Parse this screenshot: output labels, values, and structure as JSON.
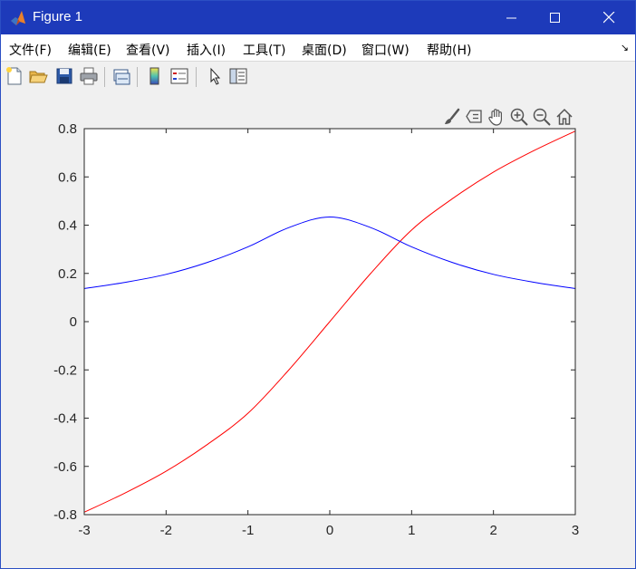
{
  "window": {
    "title": "Figure 1",
    "controls": [
      "minimize",
      "maximize",
      "close"
    ]
  },
  "menu": {
    "items": [
      {
        "label": "文件(F)",
        "mnemonic": "F"
      },
      {
        "label": "编辑(E)",
        "mnemonic": "E"
      },
      {
        "label": "查看(V)",
        "mnemonic": "V"
      },
      {
        "label": "插入(I)",
        "mnemonic": "I"
      },
      {
        "label": "工具(T)",
        "mnemonic": "T"
      },
      {
        "label": "桌面(D)",
        "mnemonic": "D"
      },
      {
        "label": "窗口(W)",
        "mnemonic": "W"
      },
      {
        "label": "帮助(H)",
        "mnemonic": "H"
      }
    ],
    "overflow_arrow": "↘"
  },
  "toolbar": {
    "buttons": [
      "new-figure-icon",
      "open-file-icon",
      "save-icon",
      "print-icon",
      "link-plot-icon",
      "insert-colorbar-icon",
      "insert-legend-icon",
      "edit-plot-arrow-icon",
      "property-inspector-icon"
    ]
  },
  "axes_toolbar": {
    "buttons": [
      "brush-icon",
      "data-tips-icon",
      "pan-icon",
      "zoom-in-icon",
      "zoom-out-icon",
      "restore-view-icon"
    ]
  },
  "chart_data": {
    "type": "line",
    "title": "",
    "xlabel": "",
    "ylabel": "",
    "xlim": [
      -3,
      3
    ],
    "ylim": [
      -0.8,
      0.8
    ],
    "xticks": [
      "-3",
      "-2",
      "-1",
      "0",
      "1",
      "2",
      "3"
    ],
    "yticks": [
      "0.8",
      "0.6",
      "0.4",
      "0.2",
      "0",
      "-0.2",
      "-0.4",
      "-0.6",
      "-0.8"
    ],
    "x": [
      -3,
      -2.5,
      -2,
      -1.5,
      -1,
      -0.5,
      0,
      0.5,
      1,
      1.5,
      2,
      2.5,
      3
    ],
    "series": [
      {
        "color": "#ff0000",
        "values": [
          -0.79,
          -0.71,
          -0.62,
          -0.51,
          -0.38,
          -0.2,
          0,
          0.2,
          0.38,
          0.51,
          0.62,
          0.71,
          0.79
        ]
      },
      {
        "color": "#0000ff",
        "values": [
          0.137,
          0.163,
          0.196,
          0.245,
          0.31,
          0.39,
          0.434,
          0.39,
          0.31,
          0.245,
          0.196,
          0.163,
          0.137
        ]
      }
    ],
    "grid": false,
    "legend": "none"
  }
}
